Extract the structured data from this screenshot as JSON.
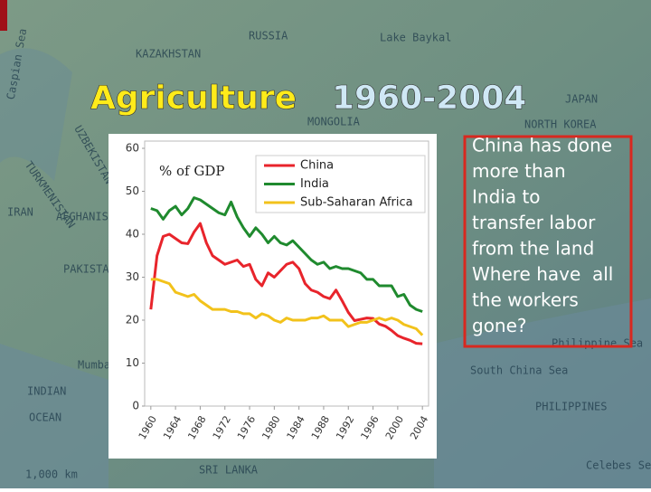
{
  "slide": {
    "title_part1": "Agriculture",
    "title_part2": "1960-2004",
    "callout_lines": [
      "China has done",
      "more than",
      "India to",
      "transfer labor",
      "from the land",
      "Where have  all",
      "the workers",
      "gone?"
    ]
  },
  "map": {
    "labels": [
      "RUSSIA",
      "Lake Baykal",
      "MONGOLIA",
      "KAZAKHSTAN",
      "UZBEKISTAN",
      "TURKMENISTAN",
      "Caspian Sea",
      "IRAN",
      "AFGHANISTAN",
      "PAKISTAN",
      "JAPAN",
      "NORTH KOREA",
      "INDIAN",
      "OCEAN",
      "Mumbai",
      "South China Sea",
      "PHILIPPINES",
      "Philippine Sea",
      "SRI LANKA",
      "Celebes Sea",
      "1,000 km"
    ]
  },
  "chart_data": {
    "type": "line",
    "annotation": "% of GDP",
    "x": [
      1960,
      1961,
      1962,
      1963,
      1964,
      1965,
      1966,
      1967,
      1968,
      1969,
      1970,
      1971,
      1972,
      1973,
      1974,
      1975,
      1976,
      1977,
      1978,
      1979,
      1980,
      1981,
      1982,
      1983,
      1984,
      1985,
      1986,
      1987,
      1988,
      1989,
      1990,
      1991,
      1992,
      1993,
      1994,
      1995,
      1996,
      1997,
      1998,
      1999,
      2000,
      2001,
      2002,
      2003,
      2004
    ],
    "series": [
      {
        "name": "China",
        "color": "#e8242b",
        "values": [
          22.5,
          35,
          39.5,
          40,
          39,
          38,
          37.8,
          40.5,
          42.5,
          38,
          35,
          34,
          33,
          33.5,
          34,
          32.5,
          33,
          29.5,
          28,
          31,
          30,
          31.5,
          33,
          33.5,
          32,
          28.5,
          27,
          26.5,
          25.5,
          25,
          27,
          24.5,
          21.8,
          19.9,
          20.2,
          20.5,
          20.4,
          19.1,
          18.6,
          17.6,
          16.4,
          15.8,
          15.3,
          14.6,
          14.5
        ]
      },
      {
        "name": "India",
        "color": "#1f8a2e",
        "values": [
          46,
          45.5,
          43.5,
          45.5,
          46.5,
          44.5,
          46,
          48.5,
          48,
          47,
          46,
          45,
          44.5,
          47.5,
          44,
          41.5,
          39.5,
          41.5,
          40,
          38,
          39.5,
          38,
          37.5,
          38.5,
          37,
          35.5,
          34,
          33,
          33.5,
          32,
          32.5,
          32,
          32,
          31.5,
          31,
          29.5,
          29.5,
          28,
          28,
          28,
          25.5,
          26,
          23.5,
          22.5,
          22
        ]
      },
      {
        "name": "Sub-Saharan Africa",
        "color": "#f2c21b",
        "values": [
          29.5,
          29.5,
          29,
          28.5,
          26.5,
          26,
          25.5,
          26,
          24.5,
          23.5,
          22.5,
          22.5,
          22.5,
          22,
          22,
          21.5,
          21.5,
          20.5,
          21.5,
          21,
          20,
          19.5,
          20.5,
          20,
          20,
          20,
          20.5,
          20.5,
          21,
          20,
          20,
          20,
          18.5,
          19,
          19.5,
          19.5,
          20,
          20.5,
          20,
          20.5,
          20,
          19,
          18.5,
          18,
          16.5
        ]
      }
    ],
    "xlim": [
      1959,
      2005
    ],
    "xticks": [
      1960,
      1964,
      1968,
      1972,
      1976,
      1980,
      1984,
      1988,
      1992,
      1996,
      2000,
      2004
    ],
    "ylim": [
      0,
      60
    ],
    "yticks": [
      0,
      10,
      20,
      30,
      40,
      50,
      60
    ],
    "grid": false,
    "legend": "top-right"
  }
}
